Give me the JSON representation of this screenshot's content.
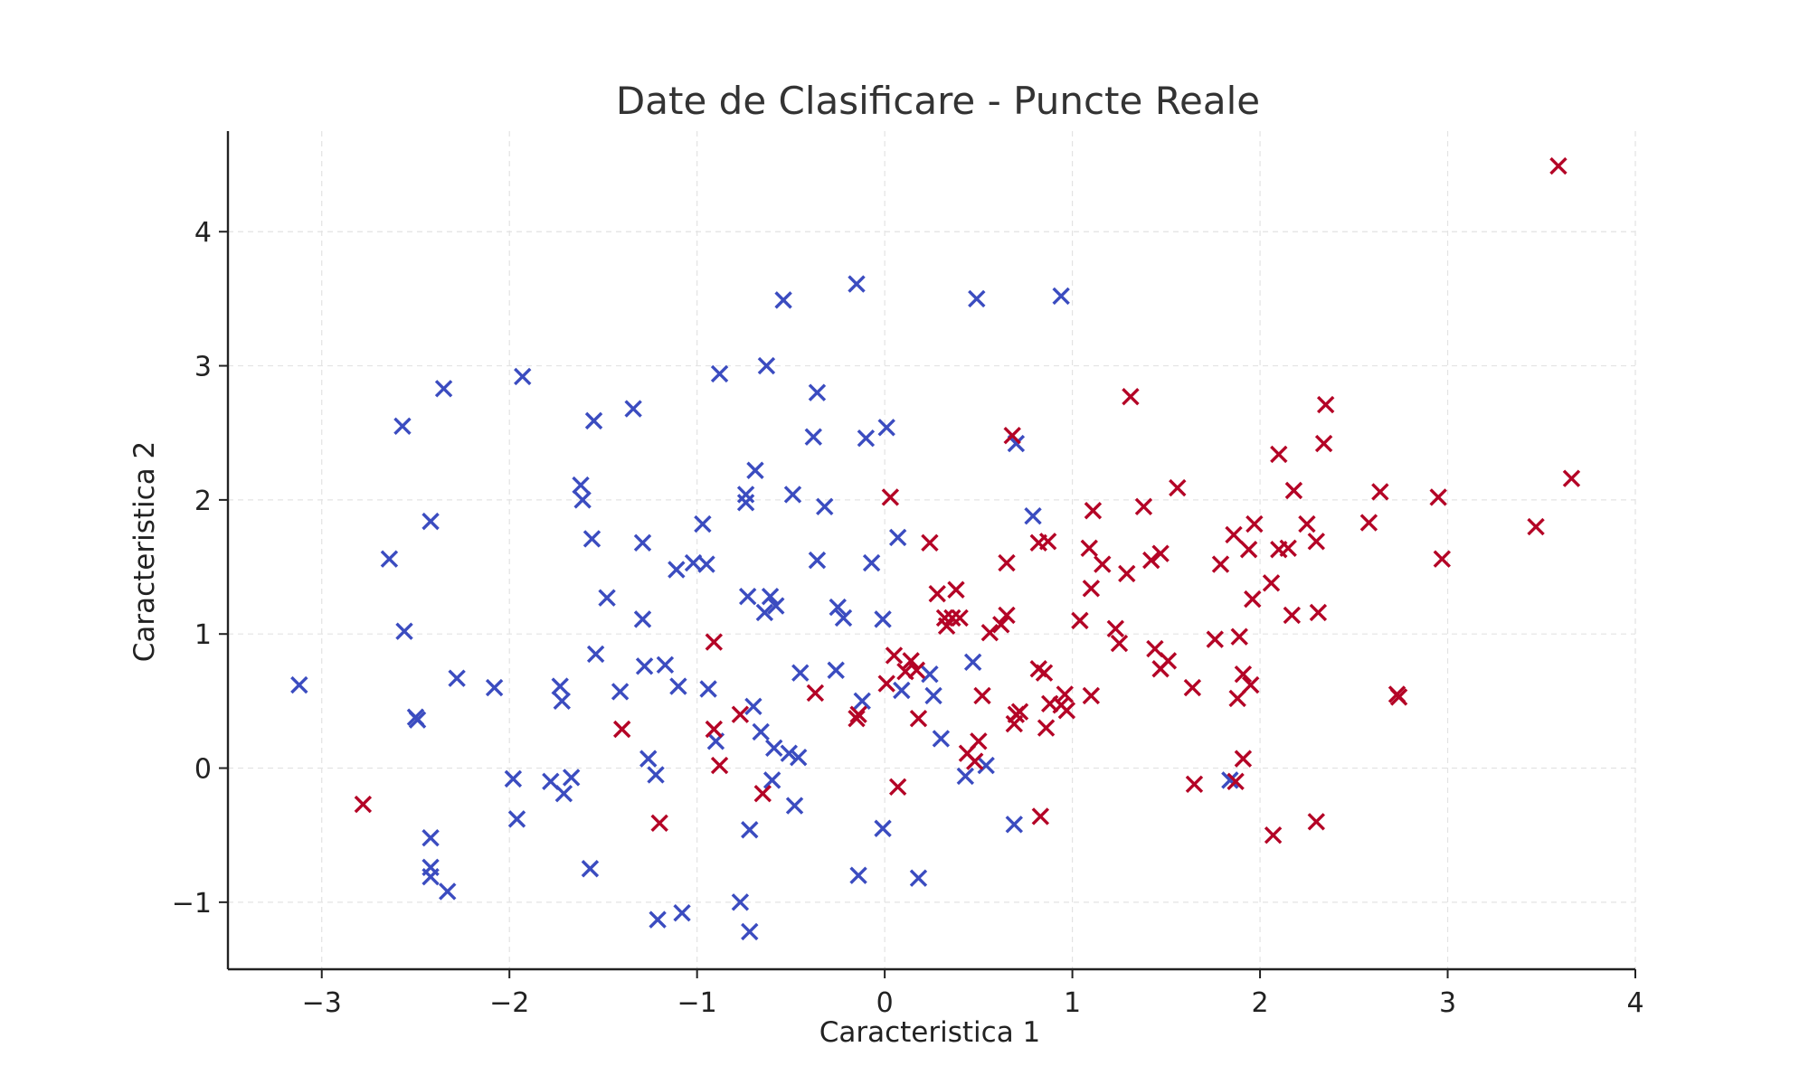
{
  "chart_data": {
    "type": "scatter",
    "title": "Date de Clasificare - Puncte Reale",
    "xlabel": "Caracteristica 1",
    "ylabel": "Caracteristica 2",
    "xlim": [
      -3.5,
      4.0
    ],
    "ylim": [
      -1.5,
      4.75
    ],
    "xticks": [
      -3,
      -2,
      -1,
      0,
      1,
      2,
      3,
      4
    ],
    "yticks": [
      -1,
      0,
      1,
      2,
      3,
      4
    ],
    "xtick_labels": [
      "−3",
      "−2",
      "−1",
      "0",
      "1",
      "2",
      "3",
      "4"
    ],
    "ytick_labels": [
      "−1",
      "0",
      "1",
      "2",
      "3",
      "4"
    ],
    "grid": true,
    "marker": "x",
    "series": [
      {
        "color": "#3b4cc0",
        "points": [
          [
            -3.12,
            0.62
          ],
          [
            -2.64,
            1.56
          ],
          [
            -2.57,
            2.55
          ],
          [
            -2.56,
            1.02
          ],
          [
            -2.5,
            0.38
          ],
          [
            -2.49,
            0.36
          ],
          [
            -2.42,
            1.84
          ],
          [
            -2.42,
            -0.52
          ],
          [
            -2.42,
            -0.74
          ],
          [
            -2.42,
            -0.81
          ],
          [
            -2.35,
            2.83
          ],
          [
            -2.33,
            -0.92
          ],
          [
            -2.28,
            0.67
          ],
          [
            -2.08,
            0.6
          ],
          [
            -1.98,
            -0.08
          ],
          [
            -1.96,
            -0.38
          ],
          [
            -1.93,
            2.92
          ],
          [
            -1.78,
            -0.1
          ],
          [
            -1.73,
            0.61
          ],
          [
            -1.72,
            0.5
          ],
          [
            -1.71,
            -0.19
          ],
          [
            -1.67,
            -0.07
          ],
          [
            -1.62,
            2.11
          ],
          [
            -1.61,
            2.0
          ],
          [
            -1.57,
            -0.75
          ],
          [
            -1.56,
            1.71
          ],
          [
            -1.55,
            2.59
          ],
          [
            -1.54,
            0.85
          ],
          [
            -1.48,
            1.27
          ],
          [
            -1.41,
            0.57
          ],
          [
            -1.34,
            2.68
          ],
          [
            -1.29,
            1.68
          ],
          [
            -1.29,
            1.11
          ],
          [
            -1.28,
            0.76
          ],
          [
            -1.26,
            0.07
          ],
          [
            -1.22,
            -0.05
          ],
          [
            -1.21,
            -1.13
          ],
          [
            -1.17,
            0.77
          ],
          [
            -1.11,
            1.48
          ],
          [
            -1.1,
            0.61
          ],
          [
            -1.08,
            -1.08
          ],
          [
            -1.02,
            1.53
          ],
          [
            -0.97,
            1.82
          ],
          [
            -0.95,
            1.52
          ],
          [
            -0.94,
            0.59
          ],
          [
            -0.9,
            0.2
          ],
          [
            -0.88,
            2.94
          ],
          [
            -0.77,
            -1.0
          ],
          [
            -0.74,
            1.98
          ],
          [
            -0.74,
            2.04
          ],
          [
            -0.73,
            1.28
          ],
          [
            -0.72,
            -1.22
          ],
          [
            -0.72,
            -0.46
          ],
          [
            -0.7,
            0.46
          ],
          [
            -0.69,
            2.22
          ],
          [
            -0.66,
            0.27
          ],
          [
            -0.64,
            1.16
          ],
          [
            -0.63,
            3.0
          ],
          [
            -0.61,
            1.28
          ],
          [
            -0.6,
            -0.09
          ],
          [
            -0.59,
            0.15
          ],
          [
            -0.58,
            1.21
          ],
          [
            -0.54,
            3.49
          ],
          [
            -0.51,
            0.11
          ],
          [
            -0.49,
            2.04
          ],
          [
            -0.48,
            -0.28
          ],
          [
            -0.46,
            0.08
          ],
          [
            -0.45,
            0.71
          ],
          [
            -0.38,
            2.47
          ],
          [
            -0.36,
            1.55
          ],
          [
            -0.36,
            2.8
          ],
          [
            -0.32,
            1.95
          ],
          [
            -0.26,
            0.73
          ],
          [
            -0.25,
            1.2
          ],
          [
            -0.22,
            1.12
          ],
          [
            -0.15,
            3.61
          ],
          [
            -0.14,
            -0.8
          ],
          [
            -0.12,
            0.5
          ],
          [
            -0.1,
            2.46
          ],
          [
            -0.07,
            1.53
          ],
          [
            -0.01,
            -0.45
          ],
          [
            -0.01,
            1.11
          ],
          [
            0.01,
            2.54
          ],
          [
            0.07,
            1.72
          ],
          [
            0.09,
            0.58
          ],
          [
            0.18,
            -0.82
          ],
          [
            0.24,
            0.7
          ],
          [
            0.26,
            0.54
          ],
          [
            0.3,
            0.22
          ],
          [
            0.43,
            -0.06
          ],
          [
            0.47,
            0.79
          ],
          [
            0.49,
            3.5
          ],
          [
            0.54,
            0.02
          ],
          [
            0.69,
            -0.42
          ],
          [
            0.7,
            2.42
          ],
          [
            0.79,
            1.88
          ],
          [
            0.94,
            3.52
          ],
          [
            1.84,
            -0.09
          ]
        ]
      },
      {
        "color": "#b40426",
        "points": [
          [
            -2.78,
            -0.27
          ],
          [
            -1.4,
            0.29
          ],
          [
            -1.2,
            -0.41
          ],
          [
            -0.91,
            0.94
          ],
          [
            -0.91,
            0.29
          ],
          [
            -0.88,
            0.02
          ],
          [
            -0.77,
            0.4
          ],
          [
            -0.65,
            -0.19
          ],
          [
            -0.37,
            0.56
          ],
          [
            -0.15,
            0.37
          ],
          [
            -0.14,
            0.4
          ],
          [
            0.01,
            0.63
          ],
          [
            0.03,
            2.02
          ],
          [
            0.05,
            0.84
          ],
          [
            0.07,
            -0.14
          ],
          [
            0.11,
            0.72
          ],
          [
            0.14,
            0.8
          ],
          [
            0.17,
            0.73
          ],
          [
            0.18,
            0.37
          ],
          [
            0.24,
            1.68
          ],
          [
            0.28,
            1.3
          ],
          [
            0.32,
            1.12
          ],
          [
            0.33,
            1.06
          ],
          [
            0.36,
            1.12
          ],
          [
            0.38,
            1.33
          ],
          [
            0.4,
            1.12
          ],
          [
            0.44,
            0.11
          ],
          [
            0.48,
            0.05
          ],
          [
            0.5,
            0.2
          ],
          [
            0.52,
            0.54
          ],
          [
            0.56,
            1.01
          ],
          [
            0.62,
            1.07
          ],
          [
            0.65,
            1.14
          ],
          [
            0.65,
            1.53
          ],
          [
            0.68,
            2.48
          ],
          [
            0.69,
            0.33
          ],
          [
            0.7,
            0.4
          ],
          [
            0.72,
            0.42
          ],
          [
            0.82,
            1.68
          ],
          [
            0.82,
            0.74
          ],
          [
            0.83,
            -0.36
          ],
          [
            0.85,
            0.71
          ],
          [
            0.86,
            0.3
          ],
          [
            0.87,
            1.69
          ],
          [
            0.88,
            0.48
          ],
          [
            0.94,
            0.47
          ],
          [
            0.96,
            0.55
          ],
          [
            0.97,
            0.43
          ],
          [
            1.04,
            1.1
          ],
          [
            1.09,
            1.64
          ],
          [
            1.1,
            1.34
          ],
          [
            1.1,
            0.54
          ],
          [
            1.11,
            1.92
          ],
          [
            1.16,
            1.52
          ],
          [
            1.23,
            1.04
          ],
          [
            1.25,
            0.93
          ],
          [
            1.29,
            1.45
          ],
          [
            1.31,
            2.77
          ],
          [
            1.38,
            1.95
          ],
          [
            1.42,
            1.55
          ],
          [
            1.44,
            0.89
          ],
          [
            1.47,
            0.74
          ],
          [
            1.47,
            1.6
          ],
          [
            1.51,
            0.8
          ],
          [
            1.56,
            2.09
          ],
          [
            1.64,
            0.6
          ],
          [
            1.65,
            -0.12
          ],
          [
            1.76,
            0.96
          ],
          [
            1.79,
            1.52
          ],
          [
            1.86,
            1.74
          ],
          [
            1.87,
            -0.1
          ],
          [
            1.88,
            0.52
          ],
          [
            1.89,
            0.98
          ],
          [
            1.91,
            0.07
          ],
          [
            1.91,
            0.7
          ],
          [
            1.94,
            1.63
          ],
          [
            1.95,
            0.62
          ],
          [
            1.96,
            1.26
          ],
          [
            1.97,
            1.82
          ],
          [
            2.06,
            1.38
          ],
          [
            2.07,
            -0.5
          ],
          [
            2.1,
            1.63
          ],
          [
            2.1,
            2.34
          ],
          [
            2.15,
            1.64
          ],
          [
            2.17,
            1.14
          ],
          [
            2.18,
            2.07
          ],
          [
            2.25,
            1.82
          ],
          [
            2.3,
            -0.4
          ],
          [
            2.3,
            1.69
          ],
          [
            2.31,
            1.16
          ],
          [
            2.34,
            2.42
          ],
          [
            2.35,
            2.71
          ],
          [
            2.58,
            1.83
          ],
          [
            2.64,
            2.06
          ],
          [
            2.73,
            0.55
          ],
          [
            2.74,
            0.53
          ],
          [
            2.95,
            2.02
          ],
          [
            2.97,
            1.56
          ],
          [
            3.47,
            1.8
          ],
          [
            3.59,
            4.49
          ],
          [
            3.66,
            2.16
          ]
        ]
      }
    ]
  }
}
